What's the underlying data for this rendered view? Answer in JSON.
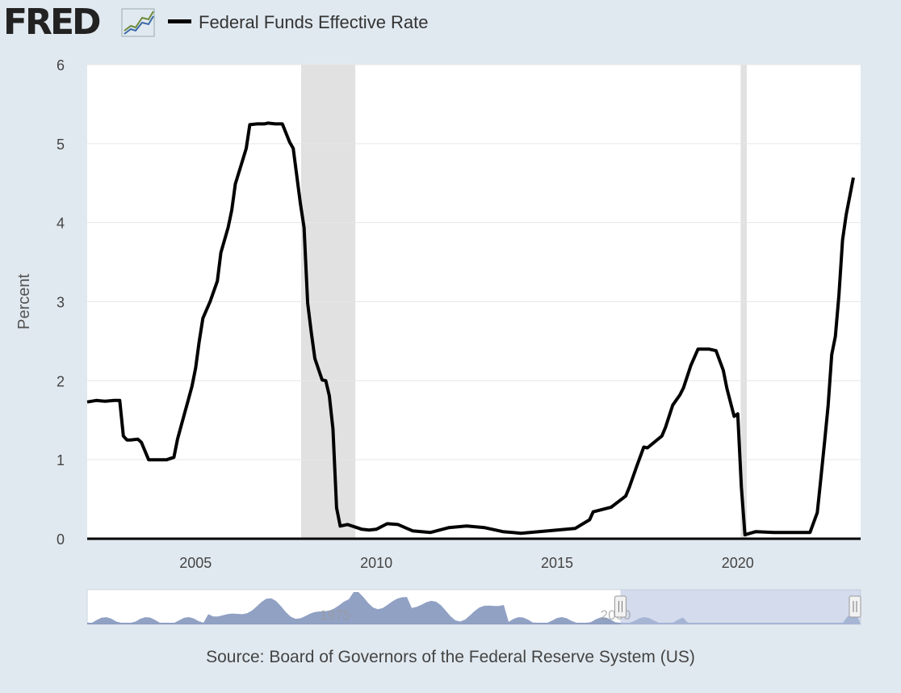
{
  "header": {
    "logo_text": "FRED",
    "legend_label": "Federal Funds Effective Rate",
    "legend_color": "#000000"
  },
  "source": "Source: Board of Governors of the Federal Reserve System (US)",
  "colors": {
    "background": "#e1e9f0",
    "plot_bg": "#ffffff",
    "recession": "#e1e1e1",
    "line": "#000000",
    "navigator_fill": "#6c82b0",
    "navigator_window": "#b6c3e1"
  },
  "chart_data": {
    "type": "line",
    "title": "",
    "series": [
      {
        "name": "Federal Funds Effective Rate",
        "x": [
          2002.0,
          2002.25,
          2002.5,
          2002.75,
          2002.9,
          2003.0,
          2003.1,
          2003.2,
          2003.4,
          2003.5,
          2003.7,
          2003.8,
          2003.9,
          2004.0,
          2004.2,
          2004.4,
          2004.5,
          2004.6,
          2004.8,
          2004.9,
          2005.0,
          2005.1,
          2005.2,
          2005.4,
          2005.6,
          2005.7,
          2005.9,
          2006.0,
          2006.1,
          2006.3,
          2006.4,
          2006.5,
          2006.7,
          2006.9,
          2007.0,
          2007.2,
          2007.4,
          2007.6,
          2007.7,
          2007.9,
          2008.0,
          2008.1,
          2008.2,
          2008.3,
          2008.5,
          2008.6,
          2008.7,
          2008.8,
          2008.9,
          2009.0,
          2009.2,
          2009.4,
          2009.6,
          2009.8,
          2010.0,
          2010.3,
          2010.6,
          2011.0,
          2011.5,
          2012.0,
          2012.5,
          2013.0,
          2013.5,
          2014.0,
          2014.5,
          2015.0,
          2015.5,
          2015.9,
          2016.0,
          2016.5,
          2016.9,
          2017.0,
          2017.2,
          2017.4,
          2017.5,
          2017.9,
          2018.0,
          2018.2,
          2018.4,
          2018.5,
          2018.7,
          2018.9,
          2019.0,
          2019.2,
          2019.4,
          2019.6,
          2019.7,
          2019.9,
          2020.0,
          2020.1,
          2020.2,
          2020.5,
          2021.0,
          2021.5,
          2022.0,
          2022.2,
          2022.3,
          2022.4,
          2022.5,
          2022.6,
          2022.7,
          2022.8,
          2022.9,
          2023.0,
          2023.2
        ],
        "values": [
          1.73,
          1.75,
          1.74,
          1.75,
          1.75,
          1.3,
          1.25,
          1.25,
          1.26,
          1.22,
          1.0,
          1.0,
          1.0,
          1.0,
          1.0,
          1.03,
          1.26,
          1.43,
          1.76,
          1.93,
          2.16,
          2.5,
          2.79,
          3.0,
          3.26,
          3.62,
          3.94,
          4.16,
          4.49,
          4.79,
          4.94,
          5.24,
          5.25,
          5.25,
          5.26,
          5.25,
          5.25,
          5.02,
          4.94,
          4.24,
          3.94,
          2.98,
          2.61,
          2.28,
          2.01,
          2.0,
          1.81,
          1.39,
          0.39,
          0.16,
          0.18,
          0.15,
          0.12,
          0.11,
          0.12,
          0.19,
          0.18,
          0.1,
          0.08,
          0.14,
          0.16,
          0.14,
          0.09,
          0.07,
          0.09,
          0.11,
          0.13,
          0.24,
          0.34,
          0.4,
          0.54,
          0.65,
          0.91,
          1.16,
          1.15,
          1.3,
          1.41,
          1.69,
          1.82,
          1.91,
          2.19,
          2.4,
          2.4,
          2.4,
          2.38,
          2.13,
          1.9,
          1.55,
          1.58,
          0.65,
          0.05,
          0.09,
          0.08,
          0.08,
          0.08,
          0.33,
          0.77,
          1.21,
          1.68,
          2.33,
          2.56,
          3.08,
          3.78,
          4.1,
          4.57
        ],
        "color": "#000000"
      }
    ],
    "recessions": [
      [
        2007.92,
        2009.42
      ],
      [
        2020.08,
        2020.25
      ]
    ],
    "xlabel": "",
    "ylabel": "Percent",
    "xlim": [
      2002.0,
      2023.4
    ],
    "ylim": [
      0,
      6
    ],
    "x_ticks": [
      "2005",
      "2010",
      "2015",
      "2020"
    ],
    "x_tick_values": [
      2005,
      2010,
      2015,
      2020
    ],
    "y_ticks": [
      "0",
      "1",
      "2",
      "3",
      "4",
      "5",
      "6"
    ],
    "y_tick_values": [
      0,
      1,
      2,
      3,
      4,
      5,
      6
    ],
    "grid": true,
    "legend": "top-left",
    "navigator": {
      "tick_labels": [
        "1975",
        "2000"
      ],
      "range": [
        1954.5,
        2023.4
      ],
      "selected": [
        2002.0,
        2023.4
      ]
    }
  }
}
